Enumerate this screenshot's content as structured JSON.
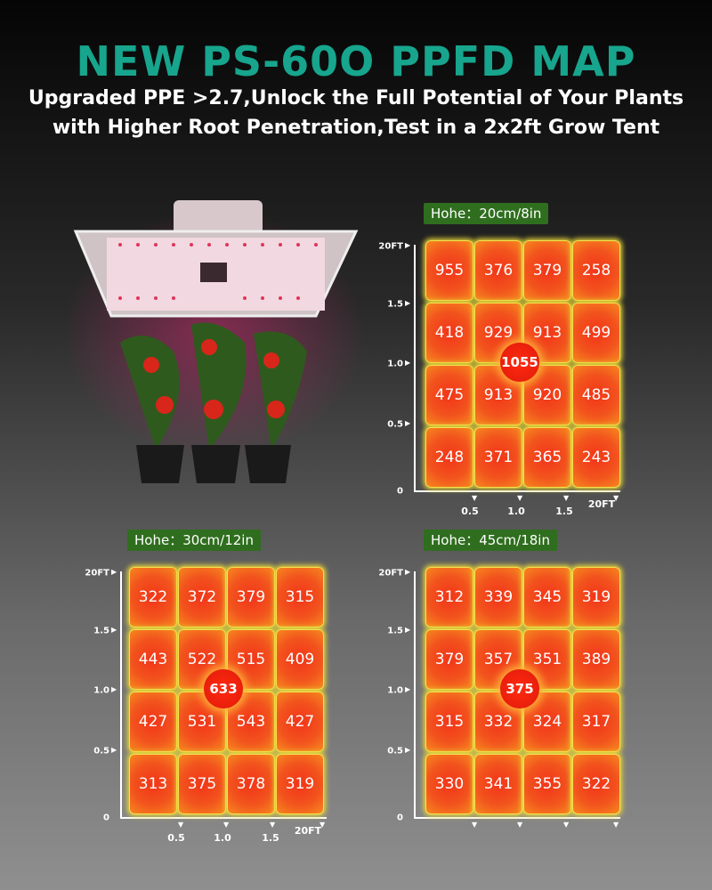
{
  "header": {
    "title": "NEW PS-60O PPFD MAP",
    "subtitle": [
      "Upgraded PPE >2.7,Unlock the Full Potential of Your Plants",
      "with Higher Root Penetration,Test in a 2x2ft Grow Tent"
    ]
  },
  "maps": [
    {
      "label": "Hohe：20cm/8in",
      "cells": [
        [
          955,
          376,
          379,
          258
        ],
        [
          418,
          929,
          913,
          499
        ],
        [
          475,
          913,
          920,
          485
        ],
        [
          248,
          371,
          365,
          243
        ]
      ],
      "center": 1055,
      "y_labels": [
        "20FT",
        "1.5",
        "1.0",
        "0.5",
        "0"
      ],
      "x_labels": [
        "0.5",
        "1.0",
        "1.5",
        "20FT"
      ]
    },
    {
      "label": "Hohe：30cm/12in",
      "cells": [
        [
          322,
          372,
          379,
          315
        ],
        [
          443,
          522,
          515,
          409
        ],
        [
          427,
          531,
          543,
          427
        ],
        [
          313,
          375,
          378,
          319
        ]
      ],
      "center": 633,
      "y_labels": [
        "20FT",
        "1.5",
        "1.0",
        "0.5",
        "0"
      ],
      "x_labels": [
        "0.5",
        "1.0",
        "1.5",
        "20FT"
      ]
    },
    {
      "label": "Hohe：45cm/18in",
      "cells": [
        [
          312,
          339,
          345,
          319
        ],
        [
          379,
          357,
          351,
          389
        ],
        [
          315,
          332,
          324,
          317
        ],
        [
          330,
          341,
          355,
          322
        ]
      ],
      "center": 375,
      "y_labels": [
        "20FT",
        "1.5",
        "1.0",
        "0.5",
        "0"
      ]
    }
  ]
}
